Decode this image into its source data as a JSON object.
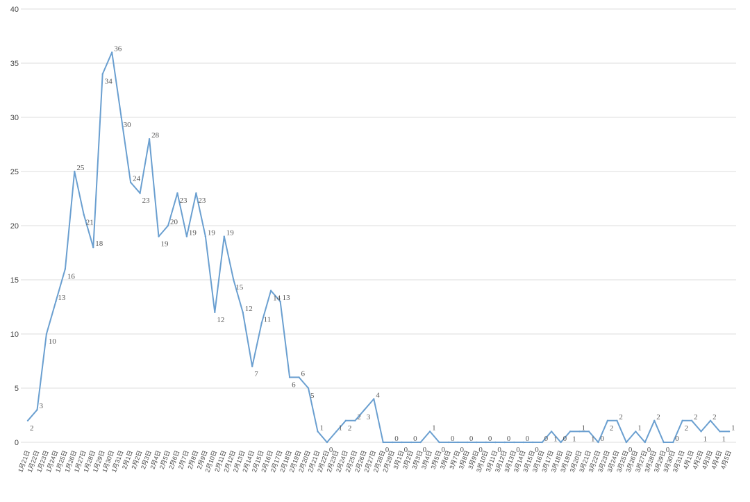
{
  "chart_data": {
    "type": "line",
    "categories": [
      "1月21日",
      "1月22日",
      "1月23日",
      "1月24日",
      "1月25日",
      "1月26日",
      "1月27日",
      "1月28日",
      "1月29日",
      "1月30日",
      "1月31日",
      "2月1日",
      "2月2日",
      "2月3日",
      "2月4日",
      "2月5日",
      "2月6日",
      "2月7日",
      "2月8日",
      "2月9日",
      "2月10日",
      "2月11日",
      "2月12日",
      "2月13日",
      "2月14日",
      "2月15日",
      "2月16日",
      "2月17日",
      "2月18日",
      "2月19日",
      "2月20日",
      "2月21日",
      "2月22日",
      "2月23日",
      "2月24日",
      "2月25日",
      "2月26日",
      "2月27日",
      "2月28日",
      "2月29日",
      "3月1日",
      "3月2日",
      "3月3日",
      "3月4日",
      "3月5日",
      "3月6日",
      "3月7日",
      "3月8日",
      "3月9日",
      "3月10日",
      "3月11日",
      "3月12日",
      "3月13日",
      "3月14日",
      "3月15日",
      "3月16日",
      "3月17日",
      "3月18日",
      "3月19日",
      "3月20日",
      "3月21日",
      "3月22日",
      "3月23日",
      "3月24日",
      "3月25日",
      "3月26日",
      "3月27日",
      "3月28日",
      "3月29日",
      "3月30日",
      "3月31日",
      "4月1日",
      "4月2日",
      "4月3日",
      "4月4日",
      "4月5日"
    ],
    "values": [
      2,
      3,
      10,
      13,
      16,
      25,
      21,
      18,
      34,
      36,
      30,
      24,
      23,
      28,
      19,
      20,
      23,
      19,
      23,
      19,
      12,
      19,
      15,
      12,
      7,
      11,
      14,
      13,
      6,
      6,
      5,
      1,
      0,
      1,
      2,
      2,
      3,
      4,
      0,
      0,
      0,
      0,
      0,
      1,
      0,
      0,
      0,
      0,
      0,
      0,
      0,
      0,
      0,
      0,
      0,
      0,
      1,
      0,
      1,
      1,
      1,
      0,
      2,
      2,
      0,
      1,
      0,
      2,
      0,
      0,
      2,
      2,
      1,
      2,
      1,
      1
    ],
    "color": "#6a9fd0",
    "ylim": [
      0,
      40
    ],
    "yticks": [
      0,
      5,
      10,
      15,
      20,
      25,
      30,
      35,
      40
    ],
    "grid": true
  }
}
